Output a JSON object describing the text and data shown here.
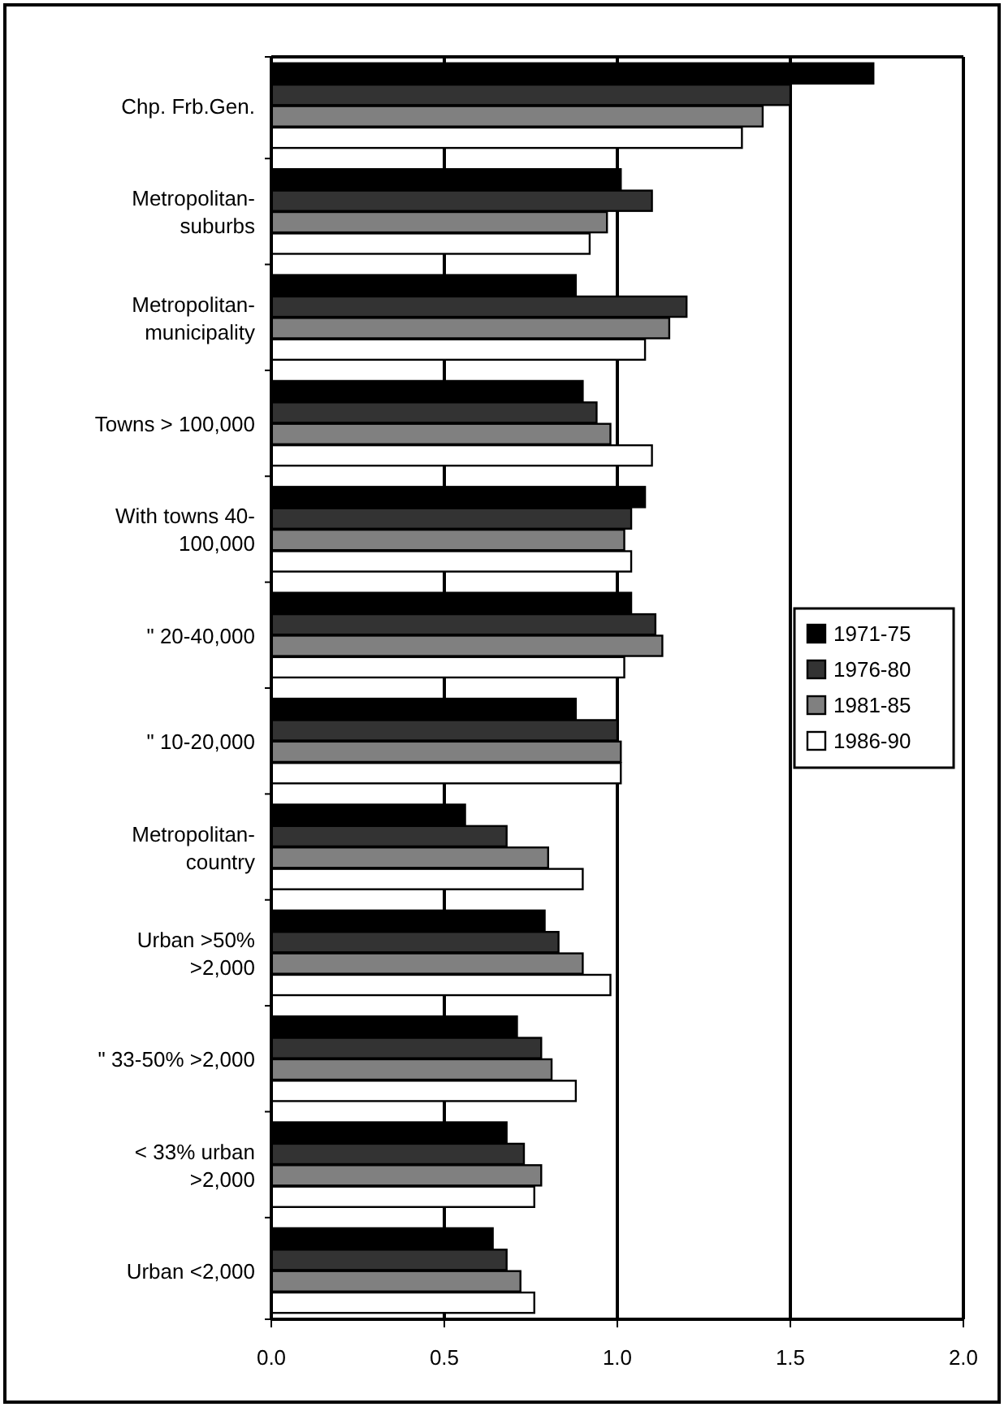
{
  "chart_data": {
    "type": "bar",
    "orientation": "horizontal",
    "categories": [
      "Chp. Frb.Gen.",
      "Metropolitan-\nsuburbs",
      "Metropolitan-\nmunicipality",
      "Towns > 100,000",
      "With towns 40-\n100,000",
      "\"  20-40,000",
      "\"  10-20,000",
      "Metropolitan-\ncountry",
      "Urban >50%\n>2,000",
      "\"  33-50% >2,000",
      "< 33% urban\n>2,000",
      "Urban  <2,000"
    ],
    "series": [
      {
        "name": "1971-75",
        "color": "#000000",
        "values": [
          1.74,
          1.01,
          0.88,
          0.9,
          1.08,
          1.04,
          0.88,
          0.56,
          0.79,
          0.71,
          0.68,
          0.64
        ]
      },
      {
        "name": "1976-80",
        "color": "#333333",
        "values": [
          1.5,
          1.1,
          1.2,
          0.94,
          1.04,
          1.11,
          1.0,
          0.68,
          0.83,
          0.78,
          0.73,
          0.68
        ]
      },
      {
        "name": "1981-85",
        "color": "#808080",
        "values": [
          1.42,
          0.97,
          1.15,
          0.98,
          1.02,
          1.13,
          1.01,
          0.8,
          0.9,
          0.81,
          0.78,
          0.72
        ]
      },
      {
        "name": "1986-90",
        "color": "#ffffff",
        "values": [
          1.36,
          0.92,
          1.08,
          1.1,
          1.04,
          1.02,
          1.01,
          0.9,
          0.98,
          0.88,
          0.76,
          0.76
        ]
      }
    ],
    "xlim": [
      0,
      2
    ],
    "xticks": [
      {
        "value": 0,
        "label": "0.0"
      },
      {
        "value": 0.5,
        "label": "0.5"
      },
      {
        "value": 1,
        "label": "1.0"
      },
      {
        "value": 1.5,
        "label": "1.5"
      },
      {
        "value": 2,
        "label": "2.0"
      }
    ],
    "grid": "x",
    "legend": "right"
  }
}
